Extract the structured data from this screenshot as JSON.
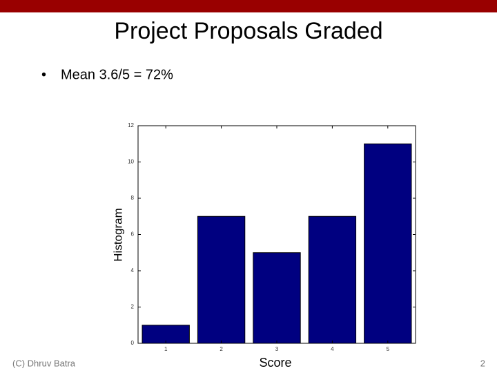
{
  "slide": {
    "title": "Project Proposals Graded",
    "bullets": [
      "Mean 3.6/5 = 72%"
    ],
    "footer": "(C) Dhruv Batra",
    "page_number": "2"
  },
  "chart_data": {
    "type": "bar",
    "x_label": "Score",
    "y_label": "Histogram",
    "x": [
      1,
      2,
      3,
      4,
      5
    ],
    "values": [
      1,
      7,
      5,
      7,
      11
    ],
    "color": "#000080",
    "xlim": [
      0.5,
      5.5
    ],
    "xticks": [
      1,
      2,
      3,
      4,
      5
    ],
    "ylim": [
      0,
      12
    ],
    "yticks": [
      0,
      2,
      4,
      6,
      8,
      10,
      12
    ],
    "grid": false
  }
}
